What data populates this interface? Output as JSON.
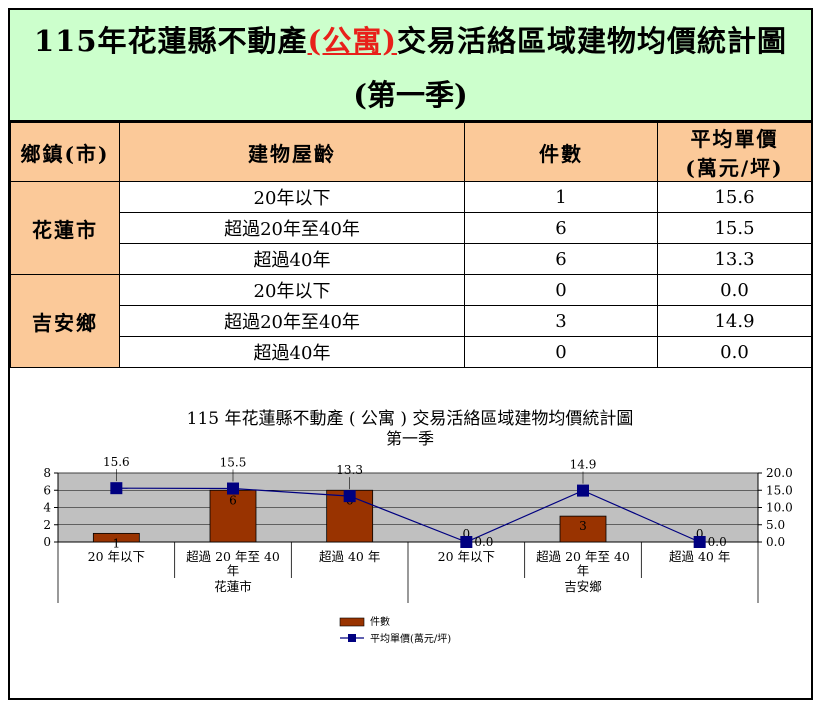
{
  "title": {
    "line1_pre": "115年花蓮縣不動產",
    "line1_highlight": "(公寓)",
    "line1_post": "交易活絡區域建物均價統計圖",
    "line2": "(第一季)"
  },
  "table": {
    "headers": [
      "鄉鎮(市)",
      "建物屋齡",
      "件數",
      "平均單價\n(萬元/坪)"
    ],
    "header_price_line1": "平均單價",
    "header_price_line2": "(萬元/坪)",
    "groups": [
      {
        "town": "花蓮市",
        "rows": [
          {
            "age": "20年以下",
            "count": "1",
            "price": "15.6"
          },
          {
            "age": "超過20年至40年",
            "count": "6",
            "price": "15.5"
          },
          {
            "age": "超過40年",
            "count": "6",
            "price": "13.3"
          }
        ]
      },
      {
        "town": "吉安鄉",
        "rows": [
          {
            "age": "20年以下",
            "count": "0",
            "price": "0.0"
          },
          {
            "age": "超過20年至40年",
            "count": "3",
            "price": "14.9"
          },
          {
            "age": "超過40年",
            "count": "0",
            "price": "0.0"
          }
        ]
      }
    ]
  },
  "chart_data": {
    "type": "bar",
    "title": "115 年花蓮縣不動產 ( 公寓 ) 交易活絡區域建物均價統計圖",
    "subtitle": "第一季",
    "categories": [
      "20 年以下",
      "超過 20 年至 40 年",
      "超過 40 年",
      "20 年以下",
      "超過 20 年至 40 年",
      "超過 40 年"
    ],
    "category_lines": [
      [
        "20 年以下"
      ],
      [
        "超過 20 年至 40",
        "年"
      ],
      [
        "超過 40 年"
      ],
      [
        "20 年以下"
      ],
      [
        "超過 20 年至 40",
        "年"
      ],
      [
        "超過 40 年"
      ]
    ],
    "groups": [
      {
        "name": "花蓮市",
        "span": 3
      },
      {
        "name": "吉安鄉",
        "span": 3
      }
    ],
    "series": [
      {
        "name": "件數",
        "type": "bar",
        "axis": "left",
        "values": [
          1,
          6,
          6,
          0,
          3,
          0
        ],
        "labels": [
          "1",
          "6",
          "6",
          "0",
          "3",
          "0"
        ],
        "color": "#993300"
      },
      {
        "name": "平均單價(萬元/坪)",
        "type": "line",
        "axis": "right",
        "values": [
          15.6,
          15.5,
          13.3,
          0.0,
          14.9,
          0.0
        ],
        "labels": [
          "15.6",
          "15.5",
          "13.3",
          "0.0",
          "14.9",
          "0.0"
        ],
        "color": "#000080"
      }
    ],
    "y_left": {
      "min": 0,
      "max": 8,
      "ticks": [
        "0",
        "2",
        "4",
        "6",
        "8"
      ]
    },
    "y_right": {
      "min": 0,
      "max": 20,
      "ticks": [
        "0.0",
        "5.0",
        "10.0",
        "15.0",
        "20.0"
      ]
    },
    "plot_background": "#c0c0c0",
    "grid": true,
    "legend_position": "bottom-left",
    "legend": [
      "件數",
      "平均單價(萬元/坪)"
    ]
  }
}
